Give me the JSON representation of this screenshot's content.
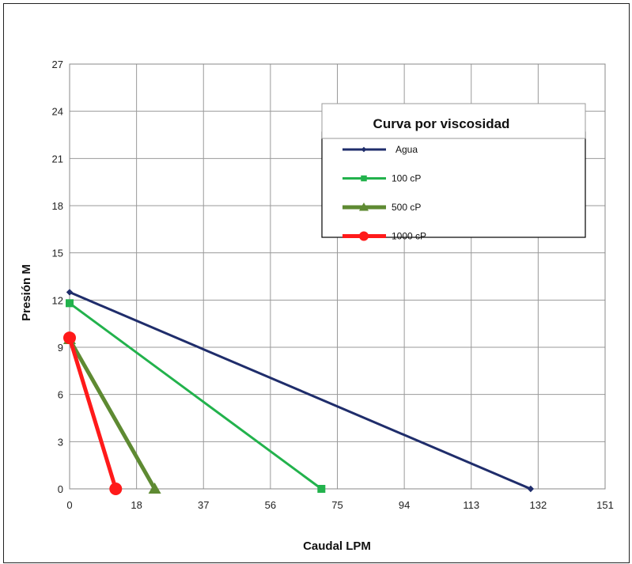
{
  "chart_data": {
    "type": "line",
    "title": "",
    "xlabel": "Caudal LPM",
    "ylabel": "Presión M",
    "legend_title": "Curva por viscosidad",
    "legend_position": "top-right",
    "grid": true,
    "xlim": [
      0,
      151
    ],
    "ylim": [
      0,
      27
    ],
    "xticks": [
      "0",
      "18",
      "37",
      "56",
      "75",
      "94",
      "113",
      "132",
      "151"
    ],
    "yticks": [
      "0",
      "3",
      "6",
      "9",
      "12",
      "15",
      "18",
      "21",
      "24",
      "27"
    ],
    "series": [
      {
        "name": "Agua",
        "color": "#1f2d6b",
        "marker": "diamond",
        "x": [
          0,
          130
        ],
        "y": [
          12.5,
          0
        ]
      },
      {
        "name": "100 cP",
        "color": "#22b24c",
        "marker": "square",
        "x": [
          0,
          71
        ],
        "y": [
          11.8,
          0
        ]
      },
      {
        "name": "500 cP",
        "color": "#5e8a32",
        "marker": "triangle",
        "x": [
          0,
          24
        ],
        "y": [
          9.5,
          0
        ]
      },
      {
        "name": "1000 cP",
        "color": "#ff1a1a",
        "marker": "circle",
        "x": [
          0,
          13
        ],
        "y": [
          9.6,
          0
        ]
      }
    ]
  }
}
